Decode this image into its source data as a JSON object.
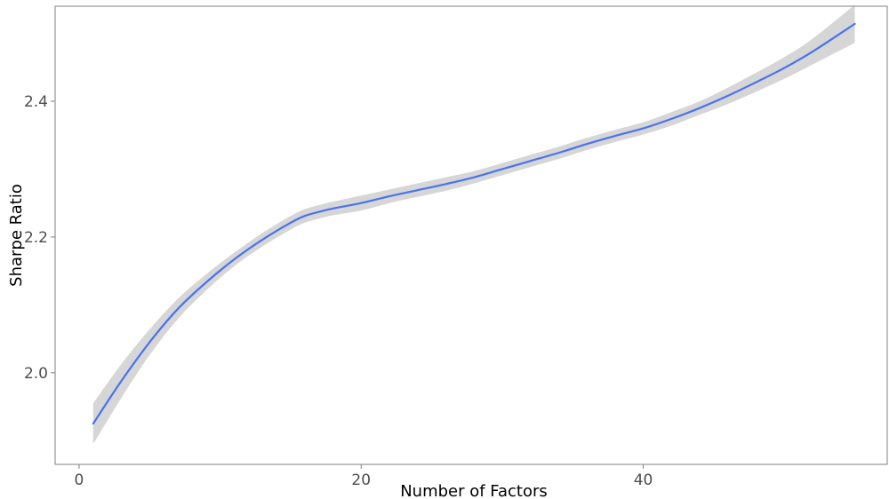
{
  "chart_data": {
    "type": "line",
    "title": "",
    "xlabel": "Number of Factors",
    "ylabel": "Sharpe Ratio",
    "xlim": [
      -1.7,
      57.3
    ],
    "ylim": [
      1.865,
      2.54
    ],
    "x_ticks": [
      0,
      20,
      40
    ],
    "y_ticks": [
      2.0,
      2.2,
      2.4
    ],
    "x_tick_labels": [
      "0",
      "20",
      "40"
    ],
    "y_tick_labels": [
      "2.0",
      "2.2",
      "2.4"
    ],
    "grid": false,
    "legend": "none",
    "series": [
      {
        "x": [
          1,
          3,
          5,
          7,
          9,
          11,
          13,
          15,
          16,
          17,
          18,
          20,
          22,
          24,
          26,
          28,
          30,
          32,
          34,
          36,
          38,
          40,
          42,
          44,
          46,
          48,
          50,
          52,
          55
        ],
        "y": [
          1.925,
          1.988,
          2.045,
          2.094,
          2.133,
          2.167,
          2.196,
          2.221,
          2.231,
          2.237,
          2.242,
          2.25,
          2.26,
          2.269,
          2.278,
          2.288,
          2.3,
          2.312,
          2.324,
          2.337,
          2.349,
          2.36,
          2.374,
          2.39,
          2.408,
          2.428,
          2.449,
          2.473,
          2.514
        ],
        "lower": [
          1.895,
          1.963,
          2.026,
          2.079,
          2.121,
          2.157,
          2.186,
          2.211,
          2.221,
          2.227,
          2.232,
          2.239,
          2.25,
          2.259,
          2.268,
          2.279,
          2.291,
          2.303,
          2.315,
          2.328,
          2.34,
          2.351,
          2.364,
          2.38,
          2.396,
          2.414,
          2.433,
          2.454,
          2.486
        ],
        "upper": [
          1.955,
          2.013,
          2.064,
          2.109,
          2.145,
          2.177,
          2.206,
          2.231,
          2.241,
          2.247,
          2.252,
          2.261,
          2.27,
          2.279,
          2.288,
          2.297,
          2.309,
          2.321,
          2.333,
          2.346,
          2.358,
          2.369,
          2.384,
          2.4,
          2.42,
          2.442,
          2.465,
          2.492,
          2.542
        ]
      }
    ],
    "colors": {
      "line": "#4a72f0",
      "band": "#d6d6d6",
      "frame": "#808080",
      "tick_text": "#4d4d4d",
      "axis_title": "#000000"
    }
  }
}
